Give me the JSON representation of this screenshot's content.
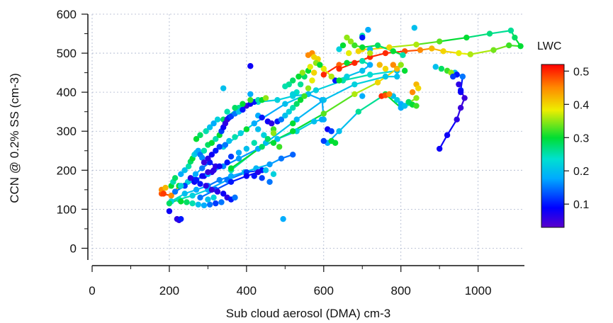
{
  "chart_data": {
    "type": "scatter",
    "title": "",
    "xlabel": "Sub cloud aerosol (DMA) cm-3",
    "ylabel": "CCN @ 0.2% SS  (cm-3)",
    "xlim": [
      0,
      1120
    ],
    "ylim": [
      -30,
      600
    ],
    "x_ticks": [
      "0",
      "200",
      "400",
      "600",
      "800",
      "1000"
    ],
    "y_ticks": [
      "0",
      "100",
      "200",
      "300",
      "400",
      "500",
      "600"
    ],
    "grid": true,
    "colorbar": {
      "label": "LWC",
      "range": [
        0.03,
        0.52
      ],
      "ticks": [
        "0.1",
        "0.2",
        "0.3",
        "0.4",
        "0.5"
      ]
    },
    "paths": [
      [
        [
          180,
          140,
          0.48
        ],
        [
          205,
          135,
          0.45
        ],
        [
          225,
          160,
          0.3
        ],
        [
          248,
          170,
          0.22
        ],
        [
          268,
          190,
          0.18
        ],
        [
          285,
          205,
          0.15
        ],
        [
          305,
          220,
          0.1
        ],
        [
          320,
          210,
          0.06
        ]
      ],
      [
        [
          215,
          145,
          0.15
        ],
        [
          240,
          160,
          0.12
        ],
        [
          265,
          175,
          0.1
        ],
        [
          290,
          185,
          0.08
        ],
        [
          310,
          195,
          0.06
        ]
      ],
      [
        [
          205,
          120,
          0.22
        ],
        [
          240,
          140,
          0.2
        ],
        [
          270,
          150,
          0.18
        ],
        [
          300,
          160,
          0.15
        ],
        [
          330,
          175,
          0.16
        ],
        [
          360,
          185,
          0.18
        ],
        [
          395,
          195,
          0.2
        ],
        [
          425,
          205,
          0.19
        ],
        [
          460,
          215,
          0.17
        ],
        [
          490,
          230,
          0.15
        ],
        [
          520,
          240,
          0.14
        ]
      ],
      [
        [
          200,
          115,
          0.28
        ],
        [
          225,
          125,
          0.25
        ],
        [
          260,
          135,
          0.22
        ],
        [
          300,
          150,
          0.18
        ],
        [
          350,
          175,
          0.15
        ],
        [
          400,
          195,
          0.12
        ],
        [
          440,
          200,
          0.1
        ]
      ],
      [
        [
          230,
          160,
          0.22
        ],
        [
          270,
          175,
          0.2
        ],
        [
          300,
          190,
          0.18
        ],
        [
          340,
          210,
          0.16
        ],
        [
          380,
          230,
          0.17
        ],
        [
          430,
          255,
          0.18
        ],
        [
          480,
          280,
          0.2
        ],
        [
          530,
          300,
          0.22
        ],
        [
          575,
          325,
          0.2
        ],
        [
          595,
          330,
          0.18
        ]
      ],
      [
        [
          280,
          130,
          0.15
        ],
        [
          320,
          150,
          0.13
        ],
        [
          360,
          170,
          0.1
        ],
        [
          400,
          185,
          0.08
        ],
        [
          430,
          195,
          0.06
        ]
      ],
      [
        [
          600,
          330,
          0.18
        ],
        [
          596,
          380,
          0.18
        ],
        [
          560,
          395,
          0.2
        ],
        [
          520,
          390,
          0.22
        ],
        [
          480,
          380,
          0.22
        ],
        [
          430,
          375,
          0.24
        ],
        [
          380,
          360,
          0.26
        ],
        [
          340,
          330,
          0.28
        ]
      ],
      [
        [
          340,
          260,
          0.22
        ],
        [
          420,
          320,
          0.18
        ],
        [
          500,
          370,
          0.2
        ],
        [
          580,
          405,
          0.22
        ],
        [
          650,
          430,
          0.25
        ],
        [
          720,
          445,
          0.23
        ],
        [
          790,
          455,
          0.2
        ]
      ],
      [
        [
          360,
          200,
          0.25
        ],
        [
          450,
          270,
          0.2
        ],
        [
          530,
          330,
          0.19
        ],
        [
          600,
          380,
          0.2
        ],
        [
          680,
          420,
          0.22
        ],
        [
          760,
          440,
          0.21
        ],
        [
          790,
          440,
          0.2
        ]
      ],
      [
        [
          360,
          205,
          0.3
        ],
        [
          440,
          260,
          0.28
        ],
        [
          520,
          300,
          0.3
        ],
        [
          600,
          345,
          0.33
        ],
        [
          680,
          395,
          0.36
        ],
        [
          740,
          425,
          0.4
        ],
        [
          790,
          460,
          0.42
        ]
      ],
      [
        [
          610,
          270,
          0.18
        ],
        [
          640,
          300,
          0.2
        ],
        [
          690,
          350,
          0.26
        ],
        [
          760,
          395,
          0.3
        ],
        [
          800,
          360,
          0.18
        ],
        [
          840,
          385,
          0.35
        ],
        [
          820,
          372,
          0.25
        ]
      ],
      [
        [
          600,
          445,
          0.5
        ],
        [
          640,
          470,
          0.47
        ],
        [
          660,
          475,
          0.3
        ],
        [
          700,
          480,
          0.25
        ],
        [
          720,
          470,
          0.18
        ],
        [
          700,
          455,
          0.2
        ],
        [
          660,
          440,
          0.22
        ],
        [
          630,
          430,
          0.1
        ]
      ],
      [
        [
          640,
          460,
          0.5
        ],
        [
          680,
          475,
          0.5
        ],
        [
          720,
          490,
          0.5
        ],
        [
          760,
          500,
          0.5
        ],
        [
          810,
          505,
          0.48
        ],
        [
          850,
          508,
          0.45
        ],
        [
          880,
          512,
          0.42
        ],
        [
          910,
          505,
          0.4
        ],
        [
          950,
          500,
          0.38
        ],
        [
          980,
          497,
          0.36
        ],
        [
          1040,
          508,
          0.34
        ],
        [
          1080,
          520,
          0.32
        ],
        [
          1110,
          518,
          0.3
        ],
        [
          1095,
          540,
          0.28
        ],
        [
          1085,
          558,
          0.26
        ],
        [
          1030,
          550,
          0.27
        ],
        [
          970,
          540,
          0.3
        ],
        [
          900,
          530,
          0.33
        ],
        [
          840,
          522,
          0.36
        ],
        [
          770,
          515,
          0.4
        ],
        [
          720,
          510,
          0.42
        ],
        [
          700,
          510,
          0.4
        ]
      ],
      [
        [
          570,
          500,
          0.45
        ],
        [
          585,
          485,
          0.4
        ],
        [
          600,
          460,
          0.38
        ],
        [
          620,
          440,
          0.36
        ],
        [
          640,
          430,
          0.3
        ]
      ],
      [
        [
          660,
          540,
          0.35
        ],
        [
          680,
          520,
          0.32
        ],
        [
          700,
          515,
          0.3
        ],
        [
          740,
          520,
          0.28
        ],
        [
          780,
          505,
          0.3
        ],
        [
          805,
          495,
          0.25
        ]
      ],
      [
        [
          900,
          255,
          0.08
        ],
        [
          920,
          290,
          0.08
        ],
        [
          945,
          330,
          0.06
        ],
        [
          955,
          360,
          0.05
        ],
        [
          965,
          385,
          0.05
        ],
        [
          955,
          405,
          0.1
        ],
        [
          960,
          440,
          0.15
        ],
        [
          940,
          450,
          0.2
        ]
      ]
    ],
    "points": [
      [
        180,
        150,
        0.45
      ],
      [
        185,
        140,
        0.49
      ],
      [
        190,
        155,
        0.42
      ],
      [
        200,
        95,
        0.08
      ],
      [
        205,
        160,
        0.3
      ],
      [
        210,
        170,
        0.25
      ],
      [
        215,
        180,
        0.28
      ],
      [
        220,
        75,
        0.06
      ],
      [
        225,
        72,
        0.06
      ],
      [
        230,
        75,
        0.1
      ],
      [
        230,
        190,
        0.18
      ],
      [
        240,
        200,
        0.2
      ],
      [
        250,
        210,
        0.25
      ],
      [
        255,
        222,
        0.28
      ],
      [
        260,
        230,
        0.3
      ],
      [
        265,
        240,
        0.22
      ],
      [
        270,
        245,
        0.2
      ],
      [
        275,
        250,
        0.18
      ],
      [
        280,
        240,
        0.15
      ],
      [
        285,
        232,
        0.16
      ],
      [
        290,
        250,
        0.25
      ],
      [
        300,
        265,
        0.28
      ],
      [
        310,
        270,
        0.3
      ],
      [
        320,
        280,
        0.25
      ],
      [
        330,
        290,
        0.3
      ],
      [
        335,
        300,
        0.12
      ],
      [
        340,
        310,
        0.08
      ],
      [
        345,
        320,
        0.06
      ],
      [
        350,
        330,
        0.05
      ],
      [
        355,
        335,
        0.1
      ],
      [
        360,
        338,
        0.12
      ],
      [
        370,
        345,
        0.15
      ],
      [
        380,
        350,
        0.2
      ],
      [
        390,
        355,
        0.1
      ],
      [
        400,
        365,
        0.05
      ],
      [
        410,
        370,
        0.08
      ],
      [
        420,
        375,
        0.1
      ],
      [
        430,
        380,
        0.25
      ],
      [
        440,
        380,
        0.3
      ],
      [
        450,
        385,
        0.35
      ],
      [
        255,
        180,
        0.06
      ],
      [
        265,
        170,
        0.08
      ],
      [
        280,
        165,
        0.1
      ],
      [
        295,
        160,
        0.06
      ],
      [
        310,
        150,
        0.05
      ],
      [
        325,
        145,
        0.06
      ],
      [
        340,
        140,
        0.08
      ],
      [
        350,
        130,
        0.06
      ],
      [
        360,
        125,
        0.1
      ],
      [
        370,
        130,
        0.15
      ],
      [
        290,
        220,
        0.05
      ],
      [
        300,
        230,
        0.06
      ],
      [
        310,
        240,
        0.08
      ],
      [
        320,
        250,
        0.1
      ],
      [
        330,
        260,
        0.12
      ],
      [
        345,
        265,
        0.15
      ],
      [
        355,
        275,
        0.2
      ],
      [
        370,
        285,
        0.25
      ],
      [
        385,
        295,
        0.22
      ],
      [
        400,
        305,
        0.3
      ],
      [
        270,
        280,
        0.3
      ],
      [
        280,
        290,
        0.28
      ],
      [
        295,
        300,
        0.25
      ],
      [
        305,
        310,
        0.2
      ],
      [
        315,
        320,
        0.18
      ],
      [
        325,
        330,
        0.22
      ],
      [
        350,
        350,
        0.25
      ],
      [
        370,
        360,
        0.28
      ],
      [
        390,
        370,
        0.3
      ],
      [
        410,
        380,
        0.32
      ],
      [
        430,
        340,
        0.18
      ],
      [
        440,
        335,
        0.1
      ],
      [
        455,
        325,
        0.08
      ],
      [
        465,
        320,
        0.06
      ],
      [
        480,
        325,
        0.1
      ],
      [
        490,
        330,
        0.15
      ],
      [
        500,
        340,
        0.2
      ],
      [
        510,
        350,
        0.22
      ],
      [
        520,
        360,
        0.25
      ],
      [
        530,
        370,
        0.28
      ],
      [
        540,
        380,
        0.3
      ],
      [
        550,
        390,
        0.32
      ],
      [
        560,
        410,
        0.35
      ],
      [
        570,
        430,
        0.38
      ],
      [
        575,
        450,
        0.4
      ],
      [
        560,
        455,
        0.3
      ],
      [
        550,
        440,
        0.28
      ],
      [
        540,
        420,
        0.26
      ],
      [
        530,
        400,
        0.24
      ],
      [
        520,
        395,
        0.22
      ],
      [
        340,
        410,
        0.2
      ],
      [
        410,
        395,
        0.18
      ],
      [
        410,
        467,
        0.08
      ],
      [
        495,
        75,
        0.18
      ],
      [
        520,
        320,
        0.3
      ],
      [
        470,
        305,
        0.32
      ],
      [
        470,
        295,
        0.35
      ],
      [
        600,
        275,
        0.12
      ],
      [
        610,
        305,
        0.08
      ],
      [
        620,
        300,
        0.12
      ],
      [
        620,
        275,
        0.3
      ],
      [
        630,
        270,
        0.3
      ],
      [
        700,
        545,
        0.25
      ],
      [
        715,
        560,
        0.18
      ],
      [
        700,
        540,
        0.1
      ],
      [
        720,
        510,
        0.2
      ],
      [
        640,
        510,
        0.22
      ],
      [
        650,
        520,
        0.3
      ],
      [
        670,
        530,
        0.35
      ],
      [
        665,
        500,
        0.38
      ],
      [
        690,
        505,
        0.4
      ],
      [
        720,
        500,
        0.36
      ],
      [
        745,
        470,
        0.42
      ],
      [
        760,
        460,
        0.4
      ],
      [
        780,
        470,
        0.45
      ],
      [
        800,
        470,
        0.35
      ],
      [
        810,
        455,
        0.3
      ],
      [
        830,
        400,
        0.45
      ],
      [
        840,
        420,
        0.42
      ],
      [
        845,
        410,
        0.4
      ],
      [
        780,
        390,
        0.2
      ],
      [
        790,
        380,
        0.22
      ],
      [
        800,
        370,
        0.18
      ],
      [
        810,
        365,
        0.2
      ],
      [
        820,
        375,
        0.28
      ],
      [
        830,
        368,
        0.3
      ],
      [
        840,
        365,
        0.32
      ],
      [
        750,
        390,
        0.5
      ],
      [
        760,
        392,
        0.48
      ],
      [
        770,
        395,
        0.45
      ],
      [
        835,
        565,
        0.2
      ],
      [
        890,
        465,
        0.2
      ],
      [
        905,
        460,
        0.28
      ],
      [
        920,
        455,
        0.32
      ],
      [
        930,
        450,
        0.35
      ],
      [
        945,
        445,
        0.1
      ],
      [
        935,
        440,
        0.12
      ],
      [
        950,
        420,
        0.06
      ],
      [
        955,
        400,
        0.08
      ],
      [
        700,
        390,
        0.18
      ],
      [
        430,
        305,
        0.2
      ],
      [
        445,
        290,
        0.22
      ],
      [
        455,
        280,
        0.28
      ],
      [
        470,
        270,
        0.3
      ],
      [
        485,
        260,
        0.32
      ],
      [
        420,
        270,
        0.25
      ],
      [
        400,
        255,
        0.2
      ],
      [
        380,
        245,
        0.18
      ],
      [
        360,
        235,
        0.12
      ],
      [
        350,
        220,
        0.1
      ],
      [
        330,
        210,
        0.08
      ],
      [
        315,
        200,
        0.06
      ],
      [
        300,
        195,
        0.05
      ],
      [
        285,
        185,
        0.08
      ],
      [
        270,
        175,
        0.1
      ],
      [
        420,
        185,
        0.1
      ],
      [
        440,
        180,
        0.12
      ],
      [
        460,
        170,
        0.15
      ],
      [
        450,
        200,
        0.2
      ],
      [
        470,
        190,
        0.22
      ],
      [
        230,
        120,
        0.3
      ],
      [
        245,
        118,
        0.28
      ],
      [
        260,
        115,
        0.25
      ],
      [
        275,
        112,
        0.2
      ],
      [
        290,
        110,
        0.18
      ],
      [
        305,
        112,
        0.15
      ],
      [
        320,
        115,
        0.12
      ],
      [
        335,
        118,
        0.15
      ],
      [
        300,
        125,
        0.2
      ],
      [
        315,
        130,
        0.22
      ],
      [
        560,
        495,
        0.45
      ],
      [
        575,
        490,
        0.4
      ],
      [
        580,
        475,
        0.35
      ],
      [
        590,
        470,
        0.3
      ],
      [
        565,
        465,
        0.38
      ],
      [
        545,
        450,
        0.35
      ],
      [
        535,
        440,
        0.3
      ],
      [
        520,
        430,
        0.28
      ],
      [
        510,
        420,
        0.26
      ],
      [
        500,
        415,
        0.25
      ]
    ]
  }
}
